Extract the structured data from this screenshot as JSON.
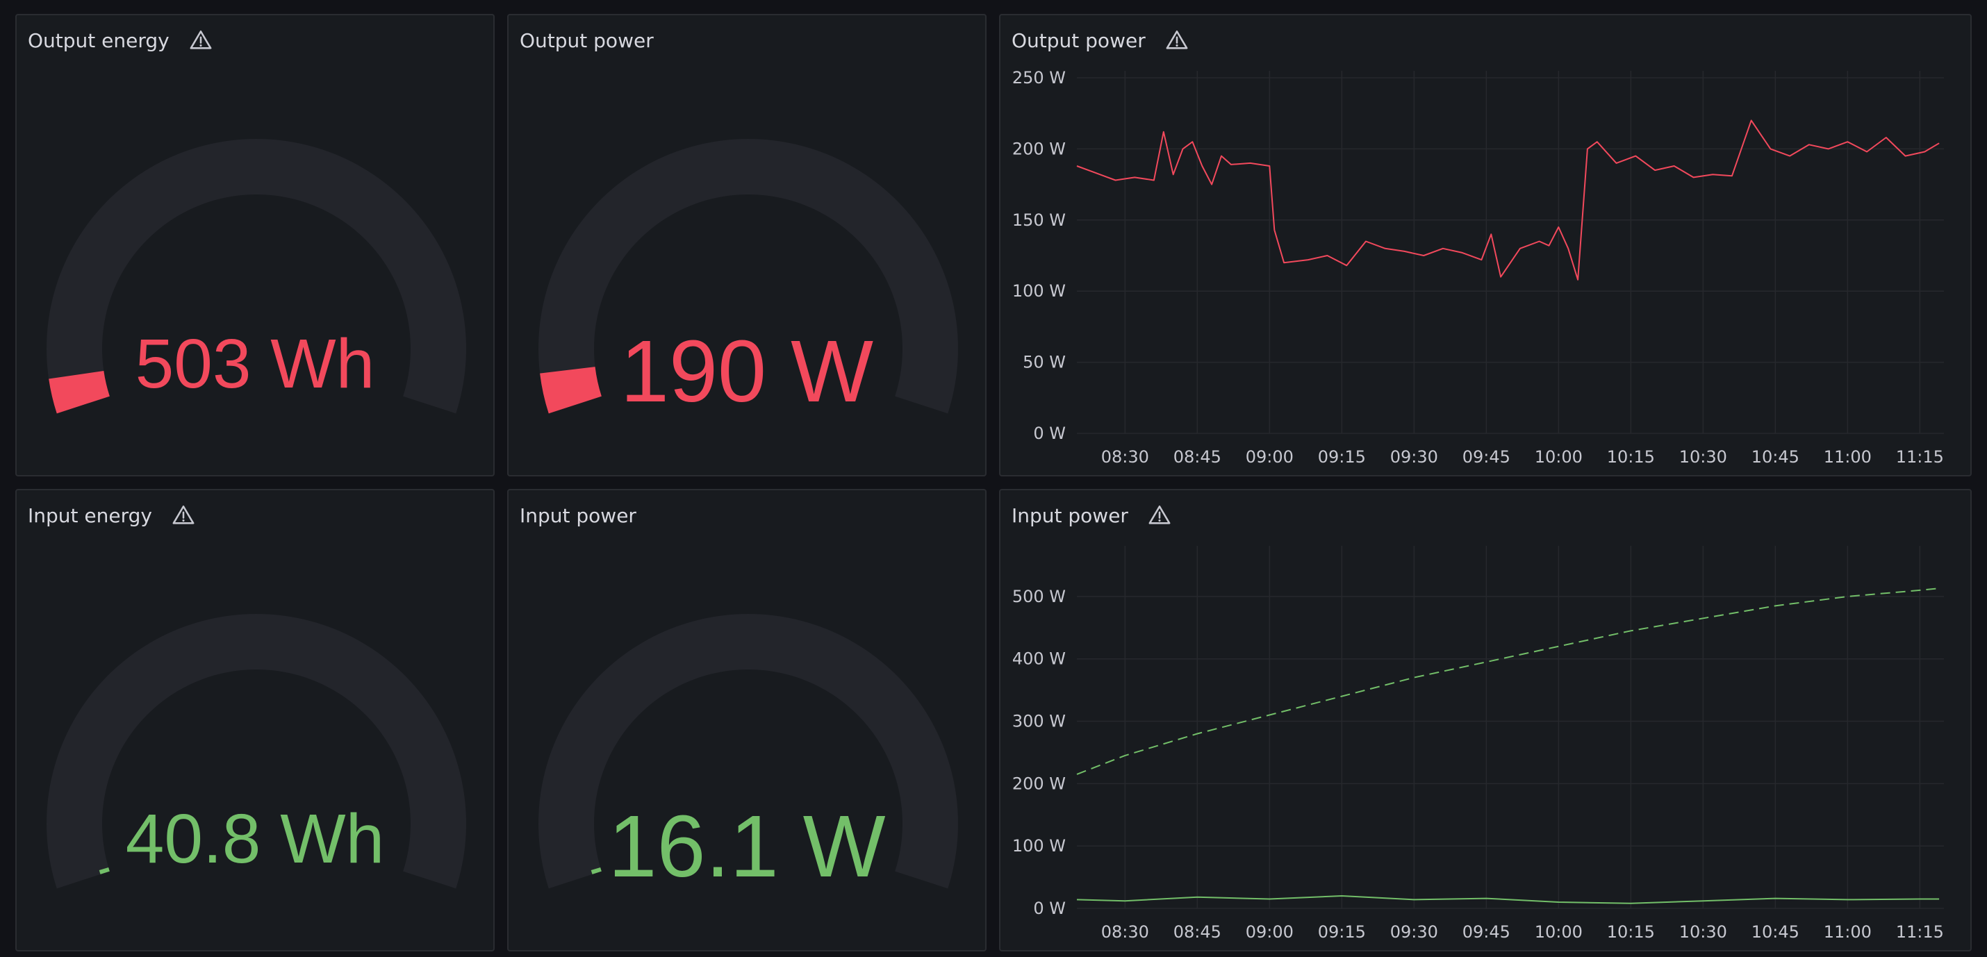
{
  "colors": {
    "background": "#111217",
    "panel": "#181b1f",
    "track": "#23252b",
    "red": "#f2495c",
    "green": "#73bf69",
    "grid": "#26282d"
  },
  "icons": {
    "warning": "warning-triangle-icon"
  },
  "panels": {
    "output_energy": {
      "title": "Output energy",
      "value": "503 Wh",
      "fraction": 0.045,
      "color": "red"
    },
    "output_power_gauge": {
      "title": "Output power",
      "value": "190 W",
      "fraction": 0.052,
      "color": "red"
    },
    "input_energy": {
      "title": "Input energy",
      "value": "40.8 Wh",
      "fraction": 0.004,
      "color": "green"
    },
    "input_power_gauge": {
      "title": "Input power",
      "value": "16.1 W",
      "fraction": 0.007,
      "color": "green"
    },
    "output_power_chart": {
      "title": "Output power"
    },
    "input_power_chart": {
      "title": "Input power"
    }
  },
  "chart_data": [
    {
      "type": "line",
      "title": "Output power",
      "xlabel": "",
      "ylabel": "",
      "x_ticks": [
        "08:30",
        "08:45",
        "09:00",
        "09:15",
        "09:30",
        "09:45",
        "10:00",
        "10:15",
        "10:30",
        "10:45",
        "11:00",
        "11:15"
      ],
      "xlim": [
        "08:20",
        "11:20"
      ],
      "y_ticks": [
        "0 W",
        "50 W",
        "100 W",
        "150 W",
        "200 W",
        "250 W"
      ],
      "ylim": [
        0,
        250
      ],
      "grid": true,
      "series": [
        {
          "color": "#f2495c",
          "style": "solid",
          "x": [
            "08:20",
            "08:24",
            "08:28",
            "08:32",
            "08:36",
            "08:38",
            "08:40",
            "08:42",
            "08:44",
            "08:46",
            "08:48",
            "08:50",
            "08:52",
            "08:56",
            "09:00",
            "09:01",
            "09:03",
            "09:08",
            "09:12",
            "09:16",
            "09:20",
            "09:24",
            "09:28",
            "09:32",
            "09:36",
            "09:40",
            "09:44",
            "09:46",
            "09:48",
            "09:52",
            "09:56",
            "09:58",
            "10:00",
            "10:02",
            "10:04",
            "10:06",
            "10:08",
            "10:12",
            "10:16",
            "10:20",
            "10:24",
            "10:28",
            "10:32",
            "10:36",
            "10:40",
            "10:42",
            "10:44",
            "10:48",
            "10:52",
            "10:56",
            "11:00",
            "11:04",
            "11:08",
            "11:12",
            "11:16",
            "11:19"
          ],
          "y": [
            188,
            183,
            178,
            180,
            178,
            212,
            182,
            200,
            205,
            188,
            175,
            195,
            189,
            190,
            188,
            143,
            120,
            122,
            125,
            118,
            135,
            130,
            128,
            125,
            130,
            127,
            122,
            140,
            110,
            130,
            135,
            132,
            145,
            130,
            108,
            200,
            205,
            190,
            195,
            185,
            188,
            180,
            182,
            181,
            220,
            210,
            200,
            195,
            203,
            200,
            205,
            198,
            208,
            195,
            198,
            204
          ]
        }
      ]
    },
    {
      "type": "line",
      "title": "Input power",
      "xlabel": "",
      "ylabel": "",
      "x_ticks": [
        "08:30",
        "08:45",
        "09:00",
        "09:15",
        "09:30",
        "09:45",
        "10:00",
        "10:15",
        "10:30",
        "10:45",
        "11:00",
        "11:15"
      ],
      "xlim": [
        "08:20",
        "11:20"
      ],
      "y_ticks": [
        "0 W",
        "100 W",
        "200 W",
        "300 W",
        "400 W",
        "500 W"
      ],
      "ylim": [
        0,
        570
      ],
      "grid": true,
      "series": [
        {
          "color": "#73bf69",
          "style": "dashed",
          "x": [
            "08:20",
            "08:30",
            "08:45",
            "09:00",
            "09:15",
            "09:30",
            "09:45",
            "10:00",
            "10:15",
            "10:30",
            "10:45",
            "11:00",
            "11:15",
            "11:19"
          ],
          "y": [
            215,
            245,
            280,
            310,
            340,
            370,
            395,
            420,
            445,
            465,
            485,
            500,
            510,
            513
          ]
        },
        {
          "color": "#73bf69",
          "style": "solid",
          "x": [
            "08:20",
            "08:30",
            "08:45",
            "09:00",
            "09:15",
            "09:30",
            "09:45",
            "10:00",
            "10:15",
            "10:30",
            "10:45",
            "11:00",
            "11:15",
            "11:19"
          ],
          "y": [
            14,
            12,
            18,
            15,
            20,
            14,
            16,
            10,
            8,
            12,
            16,
            14,
            15,
            15
          ]
        }
      ]
    }
  ]
}
